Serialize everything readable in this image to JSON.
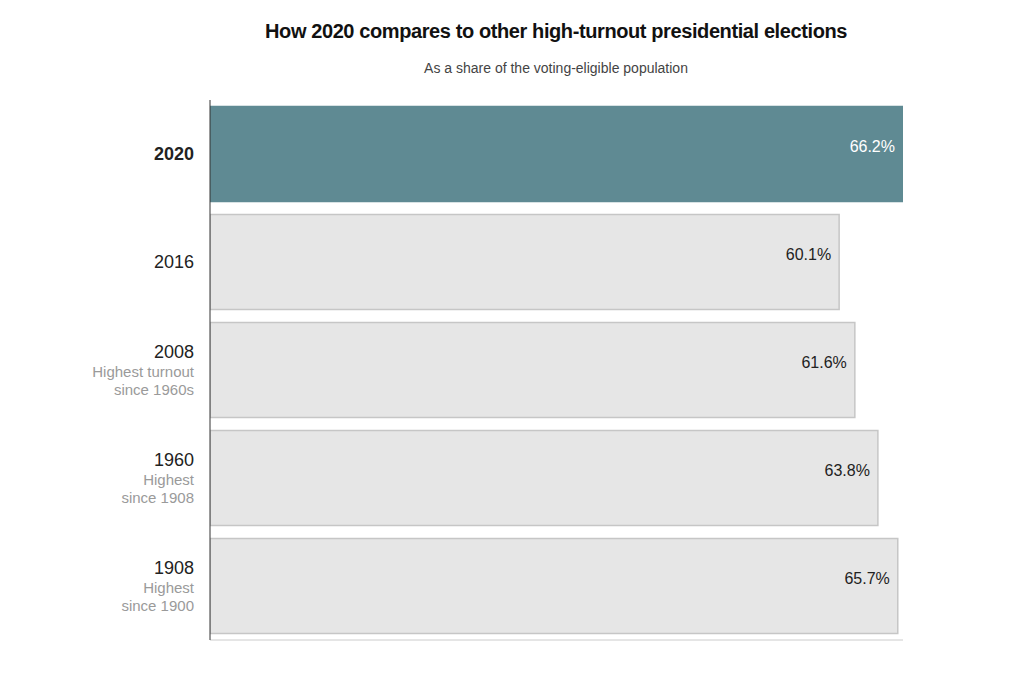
{
  "chart_data": {
    "type": "bar",
    "orientation": "horizontal",
    "title": "How 2020 compares to other high-turnout presidential elections",
    "subtitle": "As a share of the voting-eligible population",
    "categories": [
      "2020",
      "2016",
      "2008",
      "1960",
      "1908"
    ],
    "annotations": [
      null,
      null,
      "Highest turnout since 1960s",
      "Highest since 1908",
      "Highest since 1900"
    ],
    "values": [
      66.2,
      60.1,
      61.6,
      63.8,
      65.7
    ],
    "value_labels": [
      "66.2%",
      "60.1%",
      "61.6%",
      "63.8%",
      "65.7%"
    ],
    "colors": [
      "#5f8a93",
      "#e6e6e6",
      "#e6e6e6",
      "#e6e6e6",
      "#e6e6e6"
    ],
    "xlim": [
      0,
      66.2
    ],
    "tick_labels": false,
    "data_labels": true,
    "grid": false
  }
}
